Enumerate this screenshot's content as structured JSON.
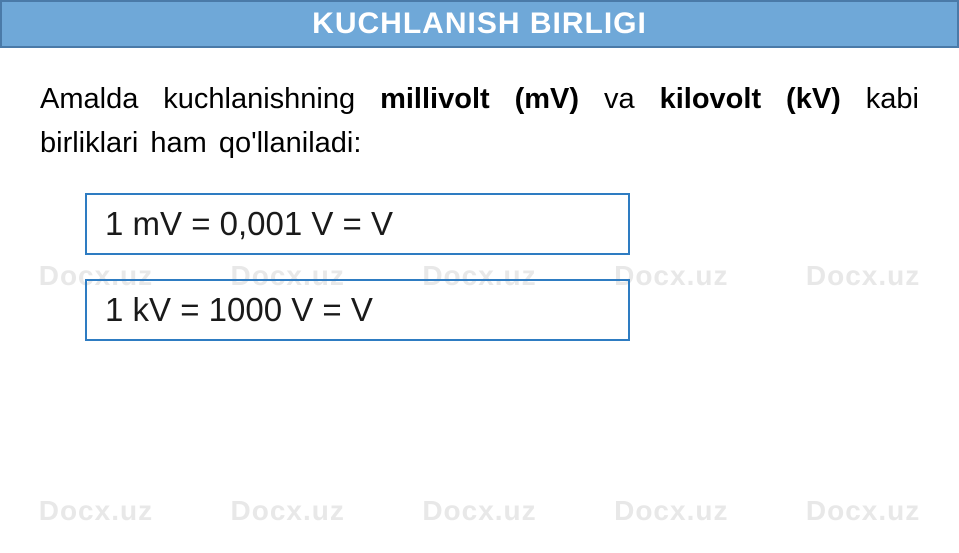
{
  "watermark": {
    "text": "Docx.uz",
    "color": "#e8e8e8",
    "fontsize": 28
  },
  "header": {
    "title": "KUCHLANISH BIRLIGI",
    "background_color": "#6fa8d8",
    "border_color": "#4a7aa8",
    "text_color": "#ffffff",
    "fontsize": 30
  },
  "description": {
    "part1": "Amalda kuchlanishning ",
    "bold1": "millivolt (mV)",
    "part2": " va ",
    "bold2": "kilovolt (kV)",
    "part3": " kabi birliklari ham qo'llaniladi:",
    "fontsize": 29,
    "text_color": "#000000"
  },
  "formulas": {
    "formula1": "1  mV  =  0,001 V  =   V",
    "formula2": "1  kV  =  1000 V  =   V",
    "border_color": "#2e7cc2",
    "fontsize": 33,
    "text_color": "#1a1a1a"
  }
}
